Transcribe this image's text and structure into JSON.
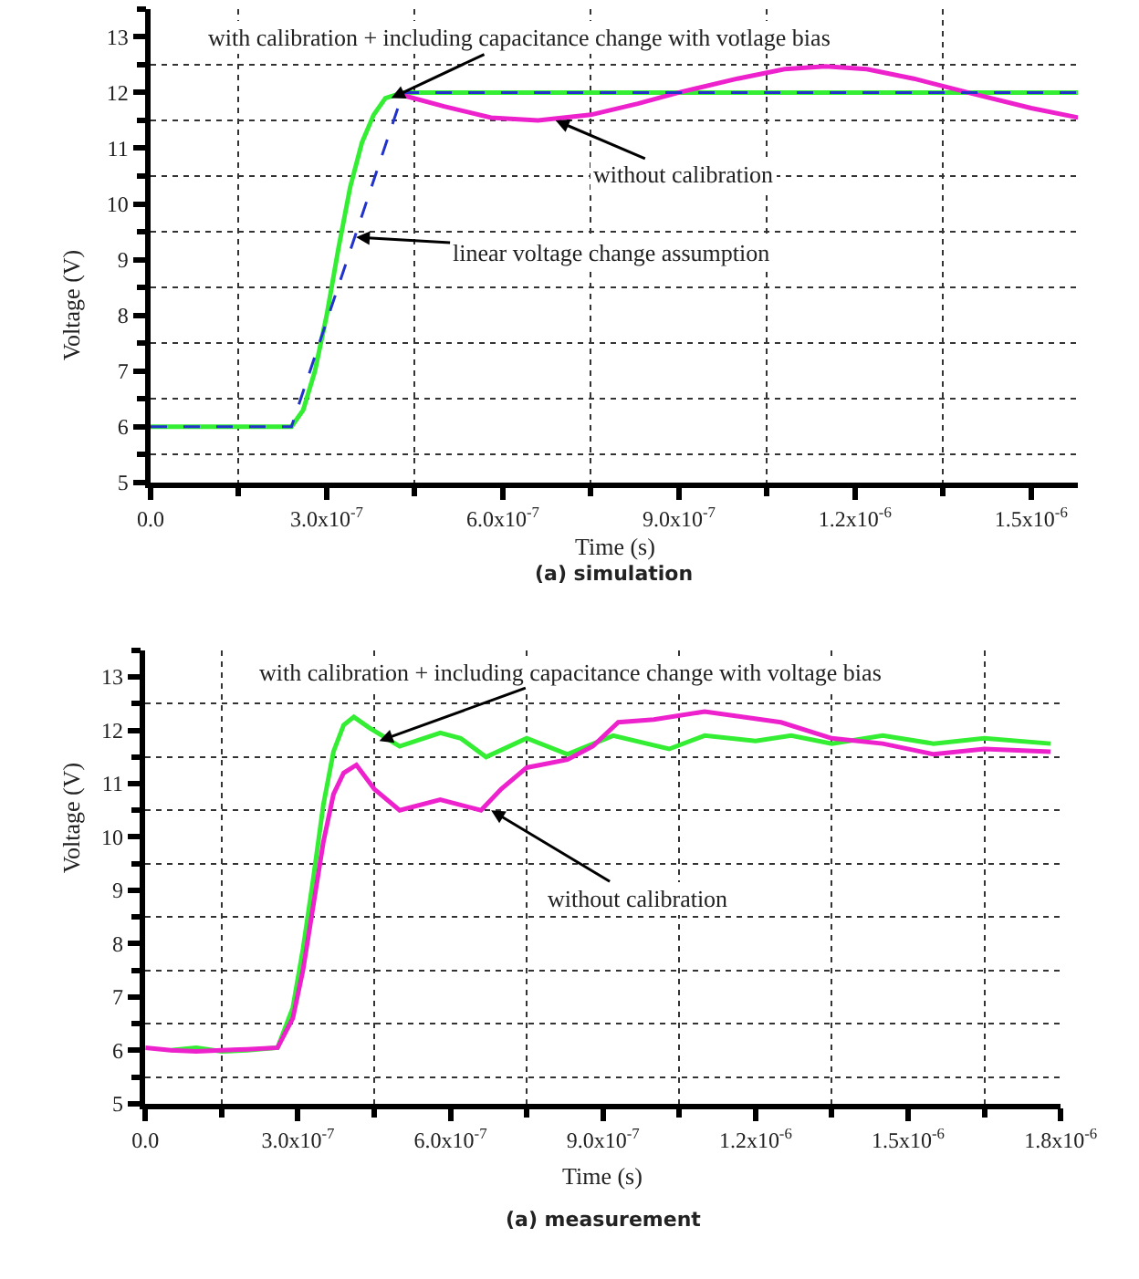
{
  "chart_data": [
    {
      "type": "line",
      "title": "(a) simulation",
      "xlabel": "Time (s)",
      "ylabel": "Voltage (V)",
      "grid": true,
      "xlim": [
        0,
        1.58e-06
      ],
      "ylim": [
        5,
        13.5
      ],
      "xticks": [
        {
          "value": 0,
          "label": "0.0"
        },
        {
          "value": 3e-07,
          "label": "3.0x10$^{-7}$"
        },
        {
          "value": 6e-07,
          "label": "6.0x10$^{-7}$"
        },
        {
          "value": 9e-07,
          "label": "9.0x10$^{-7}$"
        },
        {
          "value": 1.2e-06,
          "label": "1.2x10$^{-6}$"
        },
        {
          "value": 1.5e-06,
          "label": "1.5x10$^{-6}$"
        }
      ],
      "yticks": [
        5,
        6,
        7,
        8,
        9,
        10,
        11,
        12,
        13
      ],
      "series": [
        {
          "color": "#33ee33",
          "x": [
            0,
            2.4e-07,
            2.6e-07,
            2.8e-07,
            3e-07,
            3.2e-07,
            3.4e-07,
            3.6e-07,
            3.8e-07,
            4e-07,
            4.3e-07,
            1.58e-06
          ],
          "values": [
            6,
            6,
            6.3,
            7.0,
            8.0,
            9.2,
            10.3,
            11.1,
            11.6,
            11.9,
            12.0,
            12.0
          ]
        },
        {
          "color": "#ee22cc",
          "x": [
            4.3e-07,
            5e-07,
            5.8e-07,
            6.6e-07,
            7.5e-07,
            8.3e-07,
            9e-07,
            1e-06,
            1.08e-06,
            1.15e-06,
            1.22e-06,
            1.3e-06,
            1.4e-06,
            1.5e-06,
            1.58e-06
          ],
          "values": [
            11.95,
            11.75,
            11.55,
            11.5,
            11.6,
            11.8,
            12.0,
            12.25,
            12.42,
            12.47,
            12.42,
            12.25,
            11.98,
            11.72,
            11.55
          ]
        },
        {
          "color": "#2233cc",
          "line_style": "dashed",
          "x": [
            0,
            2.4e-07,
            4.3e-07,
            1.58e-06
          ],
          "values": [
            6,
            6,
            12,
            12
          ]
        }
      ],
      "annotations": [
        {
          "text": "with calibration + including capacitance change with votlage bias",
          "x": 4.1e-07,
          "y": 11.9
        },
        {
          "text": "without calibration",
          "x": 6.9e-07,
          "y": 11.5
        },
        {
          "text": "linear voltage change assumption",
          "x": 3.5e-07,
          "y": 9.4
        }
      ]
    },
    {
      "type": "line",
      "title": "(a) measurement",
      "xlabel": "Time (s)",
      "ylabel": "Voltage (V)",
      "grid": true,
      "xlim": [
        0,
        1.8e-06
      ],
      "ylim": [
        5,
        13.5
      ],
      "xticks": [
        {
          "value": 0,
          "label": "0.0"
        },
        {
          "value": 3e-07,
          "label": "3.0x10$^{-7}$"
        },
        {
          "value": 6e-07,
          "label": "6.0x10$^{-7}$"
        },
        {
          "value": 9e-07,
          "label": "9.0x10$^{-7}$"
        },
        {
          "value": 1.2e-06,
          "label": "1.2x10$^{-6}$"
        },
        {
          "value": 1.5e-06,
          "label": "1.5x10$^{-6}$"
        },
        {
          "value": 1.8e-06,
          "label": "1.8x10$^{-6}$"
        }
      ],
      "yticks": [
        5,
        6,
        7,
        8,
        9,
        10,
        11,
        12,
        13
      ],
      "series": [
        {
          "color": "#33ee33",
          "x": [
            5e-08,
            1e-07,
            1.5e-07,
            2e-07,
            2.6e-07,
            2.9e-07,
            3.1e-07,
            3.3e-07,
            3.5e-07,
            3.7e-07,
            3.9e-07,
            4.1e-07,
            4.4e-07,
            5e-07,
            5.8e-07,
            6.2e-07,
            6.7e-07,
            7.5e-07,
            8.3e-07,
            9.2e-07,
            1.03e-06,
            1.1e-06,
            1.2e-06,
            1.27e-06,
            1.35e-06,
            1.45e-06,
            1.55e-06,
            1.65e-06,
            1.78e-06
          ],
          "values": [
            6.0,
            6.05,
            5.98,
            6.0,
            6.05,
            6.8,
            7.9,
            9.2,
            10.6,
            11.6,
            12.1,
            12.25,
            12.05,
            11.7,
            11.95,
            11.85,
            11.5,
            11.85,
            11.55,
            11.9,
            11.65,
            11.9,
            11.8,
            11.9,
            11.75,
            11.9,
            11.75,
            11.85,
            11.75
          ]
        },
        {
          "color": "#ee22cc",
          "x": [
            0,
            5e-08,
            1e-07,
            1.5e-07,
            2e-07,
            2.6e-07,
            2.9e-07,
            3.1e-07,
            3.3e-07,
            3.5e-07,
            3.7e-07,
            3.9e-07,
            4.15e-07,
            4.5e-07,
            5e-07,
            5.8e-07,
            6.6e-07,
            7e-07,
            7.5e-07,
            8.3e-07,
            8.8e-07,
            9.3e-07,
            1e-06,
            1.1e-06,
            1.25e-06,
            1.35e-06,
            1.45e-06,
            1.55e-06,
            1.65e-06,
            1.78e-06
          ],
          "values": [
            6.05,
            6.0,
            5.98,
            6.0,
            6.02,
            6.05,
            6.6,
            7.5,
            8.7,
            9.9,
            10.8,
            11.2,
            11.35,
            10.9,
            10.5,
            10.7,
            10.5,
            10.9,
            11.3,
            11.45,
            11.7,
            12.15,
            12.2,
            12.35,
            12.15,
            11.85,
            11.75,
            11.55,
            11.65,
            11.6
          ]
        }
      ],
      "annotations": [
        {
          "text": "with calibration + including capacitance change with voltage bias",
          "x": 4.6e-07,
          "y": 11.8
        },
        {
          "text": "without calibration",
          "x": 6.8e-07,
          "y": 10.5
        }
      ]
    }
  ]
}
